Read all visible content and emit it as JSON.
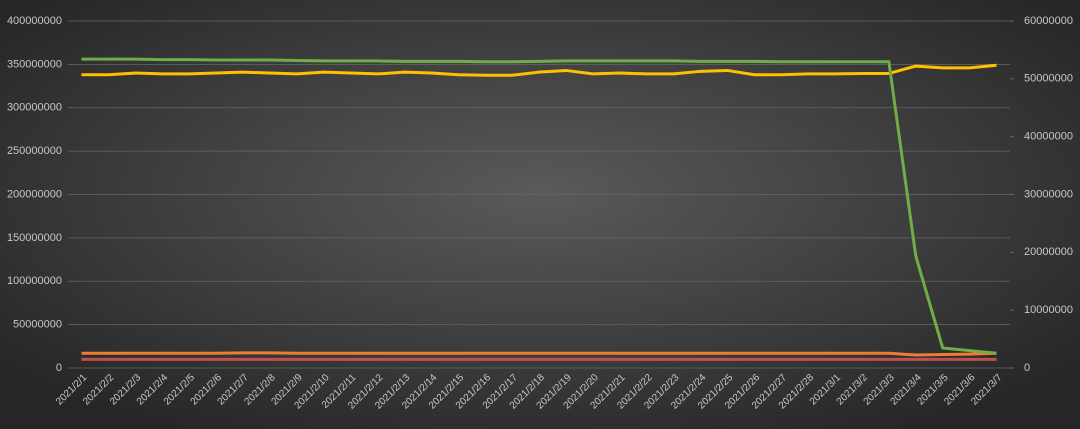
{
  "chart_data": {
    "type": "line",
    "categories": [
      "2021/2/1",
      "2021/2/2",
      "2021/2/3",
      "2021/2/4",
      "2021/2/5",
      "2021/2/6",
      "2021/2/7",
      "2021/2/8",
      "2021/2/9",
      "2021/2/10",
      "2021/2/11",
      "2021/2/12",
      "2021/2/13",
      "2021/2/14",
      "2021/2/15",
      "2021/2/16",
      "2021/2/17",
      "2021/2/18",
      "2021/2/19",
      "2021/2/20",
      "2021/2/21",
      "2021/2/22",
      "2021/2/23",
      "2021/2/24",
      "2021/2/25",
      "2021/2/26",
      "2021/2/27",
      "2021/2/28",
      "2021/3/1",
      "2021/3/2",
      "2021/3/3",
      "2021/3/4",
      "2021/3/5",
      "2021/3/6",
      "2021/3/7"
    ],
    "series": [
      {
        "color": "#70ad47",
        "values": [
          356000000,
          356000000,
          356000000,
          355500000,
          355500000,
          355000000,
          355000000,
          355000000,
          354500000,
          354000000,
          354000000,
          354000000,
          353500000,
          353500000,
          353500000,
          353000000,
          353000000,
          353500000,
          354000000,
          354000000,
          354000000,
          354000000,
          354000000,
          353500000,
          353500000,
          353500000,
          353000000,
          353000000,
          353000000,
          353000000,
          353000000,
          129000000,
          23000000,
          20000000,
          17000000
        ]
      },
      {
        "color": "#ffc000",
        "values": [
          338000000,
          338000000,
          340000000,
          339000000,
          339000000,
          340000000,
          341000000,
          340000000,
          339000000,
          341000000,
          340000000,
          339000000,
          341000000,
          340000000,
          338000000,
          337500000,
          337500000,
          341000000,
          343000000,
          339000000,
          340000000,
          339000000,
          339000000,
          342000000,
          343000000,
          338000000,
          338000000,
          339000000,
          339000000,
          339500000,
          339500000,
          348000000,
          346000000,
          346000000,
          349000000
        ]
      },
      {
        "color": "#ed7d31",
        "values": [
          17000000,
          17000000,
          17000000,
          17000000,
          17000000,
          17000000,
          17500000,
          17500000,
          17000000,
          17000000,
          17000000,
          17000000,
          17000000,
          17000000,
          17000000,
          17000000,
          17000000,
          17000000,
          17000000,
          17000000,
          17000000,
          17000000,
          17000000,
          17000000,
          17000000,
          17000000,
          17000000,
          17000000,
          17000000,
          17000000,
          17000000,
          15000000,
          15500000,
          16000000,
          17000000
        ]
      },
      {
        "color": "#c0504d",
        "values": [
          10000000,
          10000000,
          10000000,
          10000000,
          10000000,
          10000000,
          10000000,
          10000000,
          10000000,
          10000000,
          10000000,
          10000000,
          10000000,
          10000000,
          10000000,
          10000000,
          10000000,
          10000000,
          10000000,
          10000000,
          10000000,
          10000000,
          10000000,
          10000000,
          10000000,
          10000000,
          10000000,
          10000000,
          10000000,
          10000000,
          10000000,
          10000000,
          10000000,
          10000000,
          10000000
        ]
      }
    ],
    "ylim": [
      0,
      400000000
    ],
    "yticks": [
      0,
      50000000,
      100000000,
      150000000,
      200000000,
      250000000,
      300000000,
      350000000,
      400000000
    ],
    "y2lim": [
      0,
      60000000
    ],
    "y2ticks": [
      0,
      10000000,
      20000000,
      30000000,
      40000000,
      50000000,
      60000000
    ],
    "grid": true
  }
}
